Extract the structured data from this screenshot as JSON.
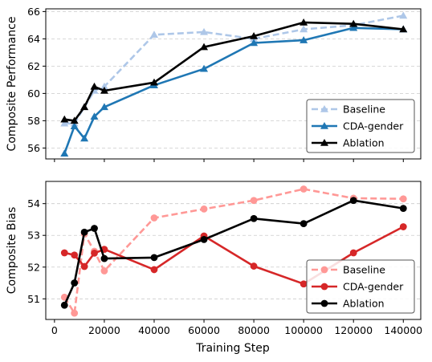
{
  "xlabel": "Training Step",
  "chart_data": [
    {
      "type": "line",
      "ylabel": "Composite Performance",
      "xlim": [
        -3500,
        147000
      ],
      "ylim": [
        55.2,
        66.2
      ],
      "x_ticks": [
        0,
        20000,
        40000,
        60000,
        80000,
        100000,
        120000,
        140000
      ],
      "y_ticks": [
        56,
        58,
        60,
        62,
        64,
        66
      ],
      "grid": "horizontal-dashed",
      "legend": "bottom-right",
      "series": [
        {
          "name": "Baseline",
          "color": "#aec7e8",
          "style": "dashed",
          "marker": "triangle",
          "points": [
            [
              4000,
              57.8
            ],
            [
              8000,
              57.8
            ],
            [
              12000,
              59.0
            ],
            [
              16000,
              60.2
            ],
            [
              20000,
              60.5
            ],
            [
              40000,
              64.3
            ],
            [
              60000,
              64.5
            ],
            [
              80000,
              64.0
            ],
            [
              100000,
              64.7
            ],
            [
              120000,
              65.0
            ],
            [
              140000,
              65.7
            ]
          ]
        },
        {
          "name": "CDA-gender",
          "color": "#1f77b4",
          "style": "solid",
          "marker": "triangle",
          "points": [
            [
              4000,
              55.6
            ],
            [
              8000,
              57.6
            ],
            [
              12000,
              56.7
            ],
            [
              16000,
              58.3
            ],
            [
              20000,
              59.0
            ],
            [
              40000,
              60.6
            ],
            [
              60000,
              61.8
            ],
            [
              80000,
              63.7
            ],
            [
              100000,
              63.9
            ],
            [
              120000,
              64.8
            ],
            [
              140000,
              64.7
            ]
          ]
        },
        {
          "name": "Ablation",
          "color": "#000000",
          "style": "solid",
          "marker": "triangle",
          "points": [
            [
              4000,
              58.1
            ],
            [
              8000,
              58.0
            ],
            [
              12000,
              59.0
            ],
            [
              16000,
              60.5
            ],
            [
              20000,
              60.2
            ],
            [
              40000,
              60.8
            ],
            [
              60000,
              63.4
            ],
            [
              80000,
              64.2
            ],
            [
              100000,
              65.2
            ],
            [
              120000,
              65.1
            ],
            [
              140000,
              64.7
            ]
          ]
        }
      ]
    },
    {
      "type": "line",
      "ylabel": "Composite Bias",
      "xlim": [
        -3500,
        147000
      ],
      "ylim": [
        50.35,
        54.7
      ],
      "x_ticks": [
        0,
        20000,
        40000,
        60000,
        80000,
        100000,
        120000,
        140000
      ],
      "x_tick_labels": [
        "0",
        "20000",
        "40000",
        "60000",
        "80000",
        "100000",
        "120000",
        "140000"
      ],
      "y_ticks": [
        51,
        52,
        53,
        54
      ],
      "grid": "horizontal-dashed",
      "legend": "bottom-right",
      "series": [
        {
          "name": "Baseline",
          "color": "#ff9896",
          "style": "dashed",
          "marker": "circle",
          "points": [
            [
              4000,
              51.05
            ],
            [
              8000,
              50.55
            ],
            [
              12000,
              53.05
            ],
            [
              16000,
              52.5
            ],
            [
              20000,
              51.88
            ],
            [
              40000,
              53.55
            ],
            [
              60000,
              53.83
            ],
            [
              80000,
              54.1
            ],
            [
              100000,
              54.46
            ],
            [
              120000,
              54.17
            ],
            [
              140000,
              54.15
            ]
          ]
        },
        {
          "name": "CDA-gender",
          "color": "#d62728",
          "style": "solid",
          "marker": "circle",
          "points": [
            [
              4000,
              52.45
            ],
            [
              8000,
              52.38
            ],
            [
              12000,
              52.02
            ],
            [
              16000,
              52.44
            ],
            [
              20000,
              52.56
            ],
            [
              40000,
              51.92
            ],
            [
              60000,
              52.98
            ],
            [
              80000,
              52.03
            ],
            [
              100000,
              51.47
            ],
            [
              120000,
              52.45
            ],
            [
              140000,
              53.27
            ]
          ]
        },
        {
          "name": "Ablation",
          "color": "#000000",
          "style": "solid",
          "marker": "circle",
          "points": [
            [
              4000,
              50.8
            ],
            [
              8000,
              51.5
            ],
            [
              12000,
              53.1
            ],
            [
              16000,
              53.22
            ],
            [
              20000,
              52.27
            ],
            [
              40000,
              52.3
            ],
            [
              60000,
              52.87
            ],
            [
              80000,
              53.53
            ],
            [
              100000,
              53.37
            ],
            [
              120000,
              54.1
            ],
            [
              140000,
              53.85
            ]
          ]
        }
      ]
    }
  ]
}
